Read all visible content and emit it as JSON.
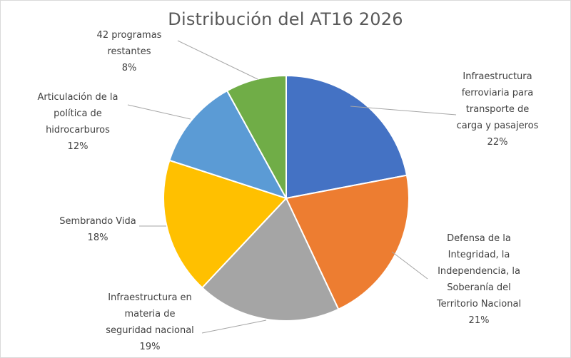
{
  "chart_data": {
    "type": "pie",
    "title": "Distribución del AT16 2026",
    "slices": [
      {
        "label_lines": [
          "Infraestructura",
          "ferroviaria para",
          "transporte de",
          "carga y pasajeros"
        ],
        "percent_label": "22%",
        "value": 22,
        "color": "#4472c4"
      },
      {
        "label_lines": [
          "Defensa de la",
          "Integridad, la",
          "Independencia, la",
          "Soberanía del",
          "Territorio Nacional"
        ],
        "percent_label": "21%",
        "value": 21,
        "color": "#ed7d31"
      },
      {
        "label_lines": [
          "Infraestructura en",
          "materia de",
          "seguridad nacional"
        ],
        "percent_label": "19%",
        "value": 19,
        "color": "#a5a5a5"
      },
      {
        "label_lines": [
          "Sembrando Vida"
        ],
        "percent_label": "18%",
        "value": 18,
        "color": "#ffc000"
      },
      {
        "label_lines": [
          "Articulación de la",
          "política de",
          "hidrocarburos"
        ],
        "percent_label": "12%",
        "value": 12,
        "color": "#5b9bd5"
      },
      {
        "label_lines": [
          "42 programas",
          "restantes"
        ],
        "percent_label": "8%",
        "value": 8,
        "color": "#70ad47"
      }
    ],
    "legend": "none"
  }
}
